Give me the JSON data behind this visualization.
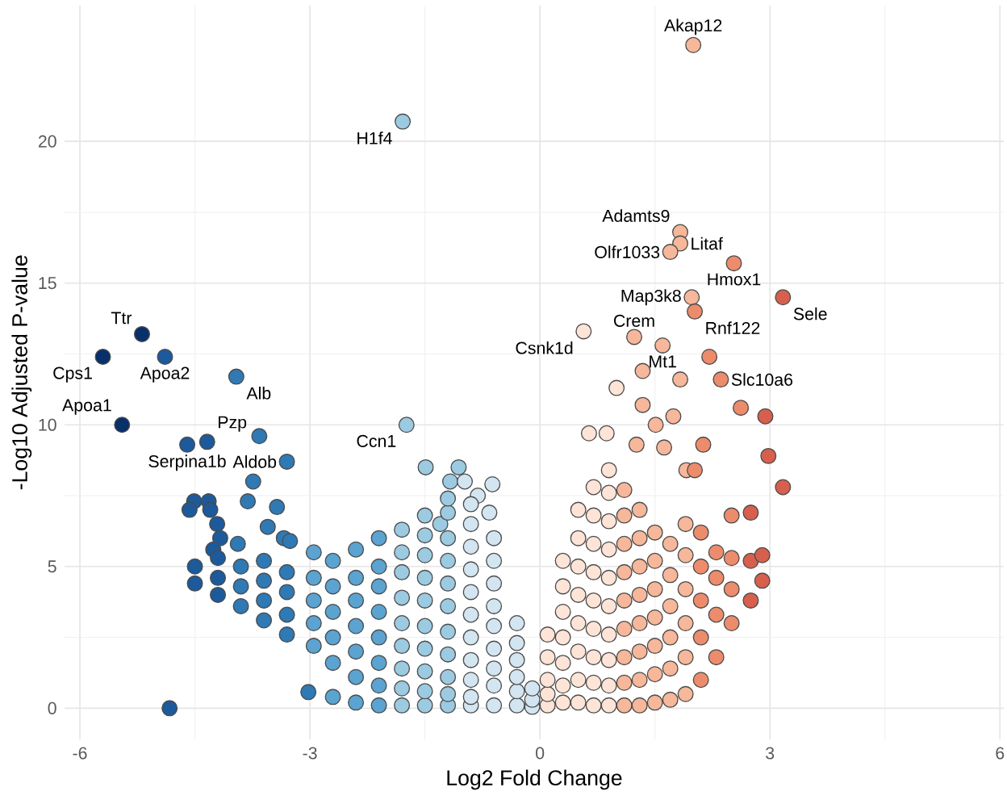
{
  "chart_data": {
    "type": "scatter",
    "xlabel": "Log2 Fold Change",
    "ylabel": "-Log10 Adjusted P-value",
    "xlim": [
      -6.2,
      6.05
    ],
    "ylim": [
      -1.1,
      24.8
    ],
    "xticks": [
      -6,
      -3,
      0,
      3,
      6
    ],
    "yticks": [
      0,
      5,
      10,
      15,
      20
    ],
    "grid": true,
    "series": [
      {
        "color": "#08306b",
        "x": [
          -5.7,
          -5.19,
          -5.45
        ],
        "values": [
          12.4,
          13.2,
          10.0
        ]
      },
      {
        "color": "#1c5a9c",
        "x": [
          -4.89,
          -4.34,
          -4.6,
          -4.83,
          -4.51,
          -4.32,
          -4.57,
          -4.3,
          -4.21,
          -4.17,
          -4.26,
          -4.5,
          -4.5,
          -4.2,
          -4.2,
          -4.2
        ],
        "values": [
          12.4,
          9.4,
          9.3,
          0,
          7.3,
          7.3,
          7.0,
          7.0,
          6.5,
          6.0,
          5.6,
          5.0,
          4.4,
          4.6,
          4.0,
          5.3
        ]
      },
      {
        "color": "#2f79b5",
        "x": [
          -3.96,
          -3.66,
          -3.3,
          -3.74,
          -3.81,
          -3.43,
          -3.55,
          -3.94,
          -3.34,
          -3.26,
          -3.9,
          -3.9,
          -3.9,
          -3.6,
          -3.6,
          -3.6,
          -3.6,
          -3.3,
          -3.3,
          -3.3,
          -3.3,
          -3.02
        ],
        "values": [
          11.7,
          9.6,
          8.7,
          8.0,
          7.3,
          7.1,
          6.4,
          5.8,
          6.0,
          5.9,
          4.3,
          3.6,
          5.0,
          3.8,
          4.5,
          3.1,
          5.2,
          3.3,
          4.1,
          2.6,
          4.8,
          0.57
        ]
      },
      {
        "color": "#5ba3d0",
        "x": [
          -2.95,
          -2.95,
          -2.95,
          -2.95,
          -2.95,
          -2.7,
          -2.7,
          -2.7,
          -2.7,
          -2.7,
          -2.7,
          -2.4,
          -2.4,
          -2.4,
          -2.4,
          -2.4,
          -2.4,
          -2.4,
          -2.1,
          -2.1,
          -2.1,
          -2.1,
          -2.1,
          -2.1,
          -2.1,
          -2.1
        ],
        "values": [
          2.2,
          3.0,
          3.8,
          4.6,
          5.5,
          1.6,
          2.5,
          3.4,
          4.3,
          5.2,
          0.4,
          0.2,
          1.1,
          2.0,
          2.9,
          3.8,
          4.6,
          5.6,
          0.1,
          0.8,
          1.6,
          2.5,
          3.4,
          4.3,
          5.0,
          6.0
        ]
      },
      {
        "color": "#9ccae1",
        "x": [
          -1.79,
          -1.74,
          -1.49,
          -1.06,
          -1.17,
          -1.3,
          -1.8,
          -1.8,
          -1.8,
          -1.8,
          -1.8,
          -1.8,
          -1.8,
          -1.8,
          -1.8,
          -1.5,
          -1.5,
          -1.5,
          -1.5,
          -1.5,
          -1.5,
          -1.5,
          -1.5,
          -1.5,
          -1.5,
          -1.2,
          -1.2,
          -1.2,
          -1.2,
          -1.2,
          -1.2,
          -1.2,
          -1.2,
          -1.2,
          -1.2,
          -1.2
        ],
        "values": [
          20.7,
          10.0,
          8.5,
          8.5,
          8.0,
          6.5,
          0.1,
          0.7,
          1.4,
          2.2,
          3.0,
          3.9,
          4.8,
          5.5,
          6.3,
          0.1,
          0.6,
          1.3,
          2.1,
          2.9,
          3.8,
          4.6,
          5.4,
          6.1,
          6.8,
          0.1,
          0.5,
          1.1,
          1.9,
          2.7,
          3.6,
          4.4,
          5.2,
          6.0,
          6.9,
          7.4
        ]
      },
      {
        "color": "#d2e5f1",
        "x": [
          -0.98,
          -0.62,
          -0.81,
          -0.66,
          -0.9,
          -0.9,
          -0.9,
          -0.9,
          -0.9,
          -0.9,
          -0.9,
          -0.9,
          -0.9,
          -0.9,
          -0.9,
          -0.6,
          -0.6,
          -0.6,
          -0.6,
          -0.6,
          -0.6,
          -0.6,
          -0.6,
          -0.6,
          -0.3,
          -0.3,
          -0.3,
          -0.3,
          -0.3,
          -0.3,
          -0.1,
          -0.1,
          -0.1
        ],
        "values": [
          8.0,
          7.9,
          7.5,
          6.9,
          0.1,
          0.4,
          1.0,
          1.7,
          2.5,
          3.3,
          4.1,
          4.9,
          5.7,
          6.5,
          7.2,
          0.1,
          0.8,
          1.4,
          2.1,
          2.9,
          3.6,
          4.4,
          5.2,
          6.0,
          0.1,
          0.6,
          1.1,
          1.7,
          2.3,
          3.0,
          0.05,
          0.3,
          0.7
        ]
      },
      {
        "color": "#fde4d6",
        "x": [
          0.57,
          0.64,
          0.87,
          1.0,
          0.1,
          0.1,
          0.1,
          0.1,
          0.1,
          0.3,
          0.3,
          0.3,
          0.3,
          0.3,
          0.3,
          0.3,
          0.5,
          0.5,
          0.5,
          0.5,
          0.5,
          0.5,
          0.5,
          0.5,
          0.7,
          0.7,
          0.7,
          0.7,
          0.7,
          0.7,
          0.7,
          0.7,
          0.7,
          0.9,
          0.9,
          0.9,
          0.9,
          0.9,
          0.9,
          0.9,
          0.9,
          0.9,
          0.9
        ],
        "values": [
          13.3,
          9.7,
          9.7,
          11.3,
          0.1,
          0.5,
          1.0,
          1.8,
          2.6,
          0.2,
          0.8,
          1.6,
          2.5,
          3.4,
          4.3,
          5.2,
          0.2,
          1.0,
          2.0,
          3.0,
          4.0,
          5.0,
          6.0,
          7.0,
          0.1,
          0.9,
          1.8,
          2.8,
          3.8,
          4.8,
          5.8,
          6.8,
          7.8,
          0.1,
          0.8,
          1.7,
          2.6,
          3.6,
          4.6,
          5.6,
          6.6,
          7.6,
          8.4
        ]
      },
      {
        "color": "#f6b79a",
        "x": [
          2.0,
          1.83,
          1.83,
          1.7,
          1.98,
          1.23,
          1.6,
          1.34,
          1.34,
          1.51,
          1.74,
          1.62,
          1.26,
          1.83,
          1.91,
          1.1,
          1.1,
          1.1,
          1.1,
          1.1,
          1.1,
          1.1,
          1.1,
          1.1,
          1.3,
          1.3,
          1.3,
          1.3,
          1.3,
          1.3,
          1.3,
          1.3,
          1.5,
          1.5,
          1.5,
          1.5,
          1.5,
          1.5,
          1.5,
          1.7,
          1.7,
          1.7,
          1.7,
          1.7,
          1.7,
          1.9,
          1.9,
          1.9,
          1.9,
          1.9,
          1.9
        ],
        "values": [
          23.4,
          16.8,
          16.4,
          16.1,
          14.5,
          13.1,
          12.8,
          11.9,
          10.7,
          10.0,
          10.3,
          9.2,
          9.3,
          11.6,
          8.4,
          0.1,
          0.9,
          1.8,
          2.8,
          3.8,
          4.8,
          5.8,
          6.8,
          7.7,
          0.1,
          1.0,
          2.0,
          3.0,
          4.0,
          5.0,
          6.0,
          7.0,
          0.2,
          1.2,
          2.2,
          3.2,
          4.2,
          5.2,
          6.2,
          0.3,
          1.4,
          2.5,
          3.6,
          4.7,
          5.8,
          0.5,
          1.8,
          3.0,
          4.2,
          5.4,
          6.5
        ]
      },
      {
        "color": "#ec8c6c",
        "x": [
          2.02,
          2.53,
          2.36,
          2.21,
          2.62,
          2.13,
          2.02,
          2.1,
          2.1,
          2.1,
          2.1,
          2.1,
          2.3,
          2.3,
          2.3,
          2.3,
          2.5,
          2.5,
          2.5,
          2.5
        ],
        "values": [
          14.0,
          15.7,
          11.6,
          12.4,
          10.6,
          9.3,
          8.4,
          1.0,
          2.5,
          3.8,
          5.0,
          6.2,
          1.8,
          3.3,
          4.6,
          5.5,
          3.0,
          4.2,
          5.3,
          6.8
        ]
      },
      {
        "color": "#d6604d",
        "x": [
          3.17,
          2.94,
          2.98,
          3.17,
          2.75,
          2.75,
          2.75,
          2.9,
          2.9
        ],
        "values": [
          14.5,
          10.3,
          8.9,
          7.8,
          3.8,
          5.2,
          6.9,
          4.5,
          5.4
        ]
      }
    ],
    "annotations": [
      {
        "text": "Akap12",
        "x": 2.0,
        "y": 23.4
      },
      {
        "text": "H1f4",
        "x": -1.79,
        "y": 20.7
      },
      {
        "text": "Adamts9",
        "x": 1.83,
        "y": 16.8
      },
      {
        "text": "Litaf",
        "x": 1.83,
        "y": 16.4
      },
      {
        "text": "Olfr1033",
        "x": 1.7,
        "y": 16.1
      },
      {
        "text": "Hmox1",
        "x": 2.53,
        "y": 15.7
      },
      {
        "text": "Map3k8",
        "x": 1.98,
        "y": 14.5
      },
      {
        "text": "Rnf122",
        "x": 2.02,
        "y": 14.0
      },
      {
        "text": "Sele",
        "x": 3.17,
        "y": 14.5
      },
      {
        "text": "Csnk1d",
        "x": 0.57,
        "y": 13.3
      },
      {
        "text": "Crem",
        "x": 1.23,
        "y": 13.1
      },
      {
        "text": "Mt1",
        "x": 1.6,
        "y": 12.8
      },
      {
        "text": "Slc10a6",
        "x": 2.36,
        "y": 11.6
      },
      {
        "text": "Ttr",
        "x": -5.19,
        "y": 13.2
      },
      {
        "text": "Cps1",
        "x": -5.7,
        "y": 12.4
      },
      {
        "text": "Apoa2",
        "x": -4.89,
        "y": 12.4
      },
      {
        "text": "Alb",
        "x": -3.96,
        "y": 11.7
      },
      {
        "text": "Apoa1",
        "x": -5.45,
        "y": 10.0
      },
      {
        "text": "Serpina1b",
        "x": -4.6,
        "y": 9.3
      },
      {
        "text": "Pzp",
        "x": -4.34,
        "y": 9.4
      },
      {
        "text": "Aldob",
        "x": -3.3,
        "y": 8.7
      },
      {
        "text": "Ccn1",
        "x": -1.74,
        "y": 10.0
      }
    ]
  }
}
